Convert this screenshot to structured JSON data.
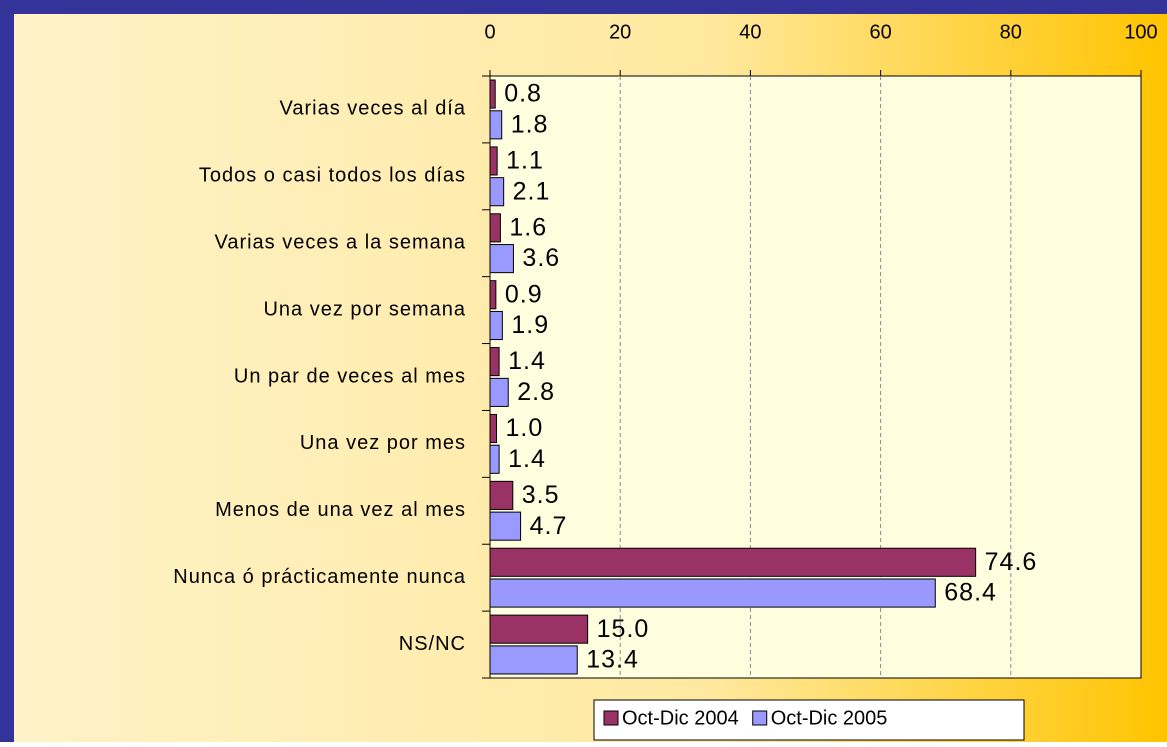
{
  "chart_data": {
    "type": "hbar",
    "categories": [
      "Varias veces al día",
      "Todos o casi todos los días",
      "Varias veces a la semana",
      "Una vez por semana",
      "Un par de veces al mes",
      "Una vez por mes",
      "Menos de una vez al mes",
      "Nunca ó prácticamente nunca",
      "NS/NC"
    ],
    "series": [
      {
        "name": "Oct-Dic 2004",
        "color": "#993366",
        "values": [
          0.8,
          1.1,
          1.6,
          0.9,
          1.4,
          1.0,
          3.5,
          74.6,
          15.0
        ],
        "value_labels": [
          "0.8",
          "1.1",
          "1.6",
          "0.9",
          "1.4",
          "1.0",
          "3.5",
          "74.6",
          "15.0"
        ]
      },
      {
        "name": "Oct-Dic 2005",
        "color": "#9999ff",
        "values": [
          1.8,
          2.1,
          3.6,
          1.9,
          2.8,
          1.4,
          4.7,
          68.4,
          13.4
        ],
        "value_labels": [
          "1.8",
          "2.1",
          "3.6",
          "1.9",
          "2.8",
          "1.4",
          "4.7",
          "68.4",
          "13.4"
        ]
      }
    ],
    "xlim": [
      0,
      100
    ],
    "xticks": [
      0,
      20,
      40,
      60,
      80,
      100
    ],
    "grid": true,
    "legend": "bottom"
  }
}
